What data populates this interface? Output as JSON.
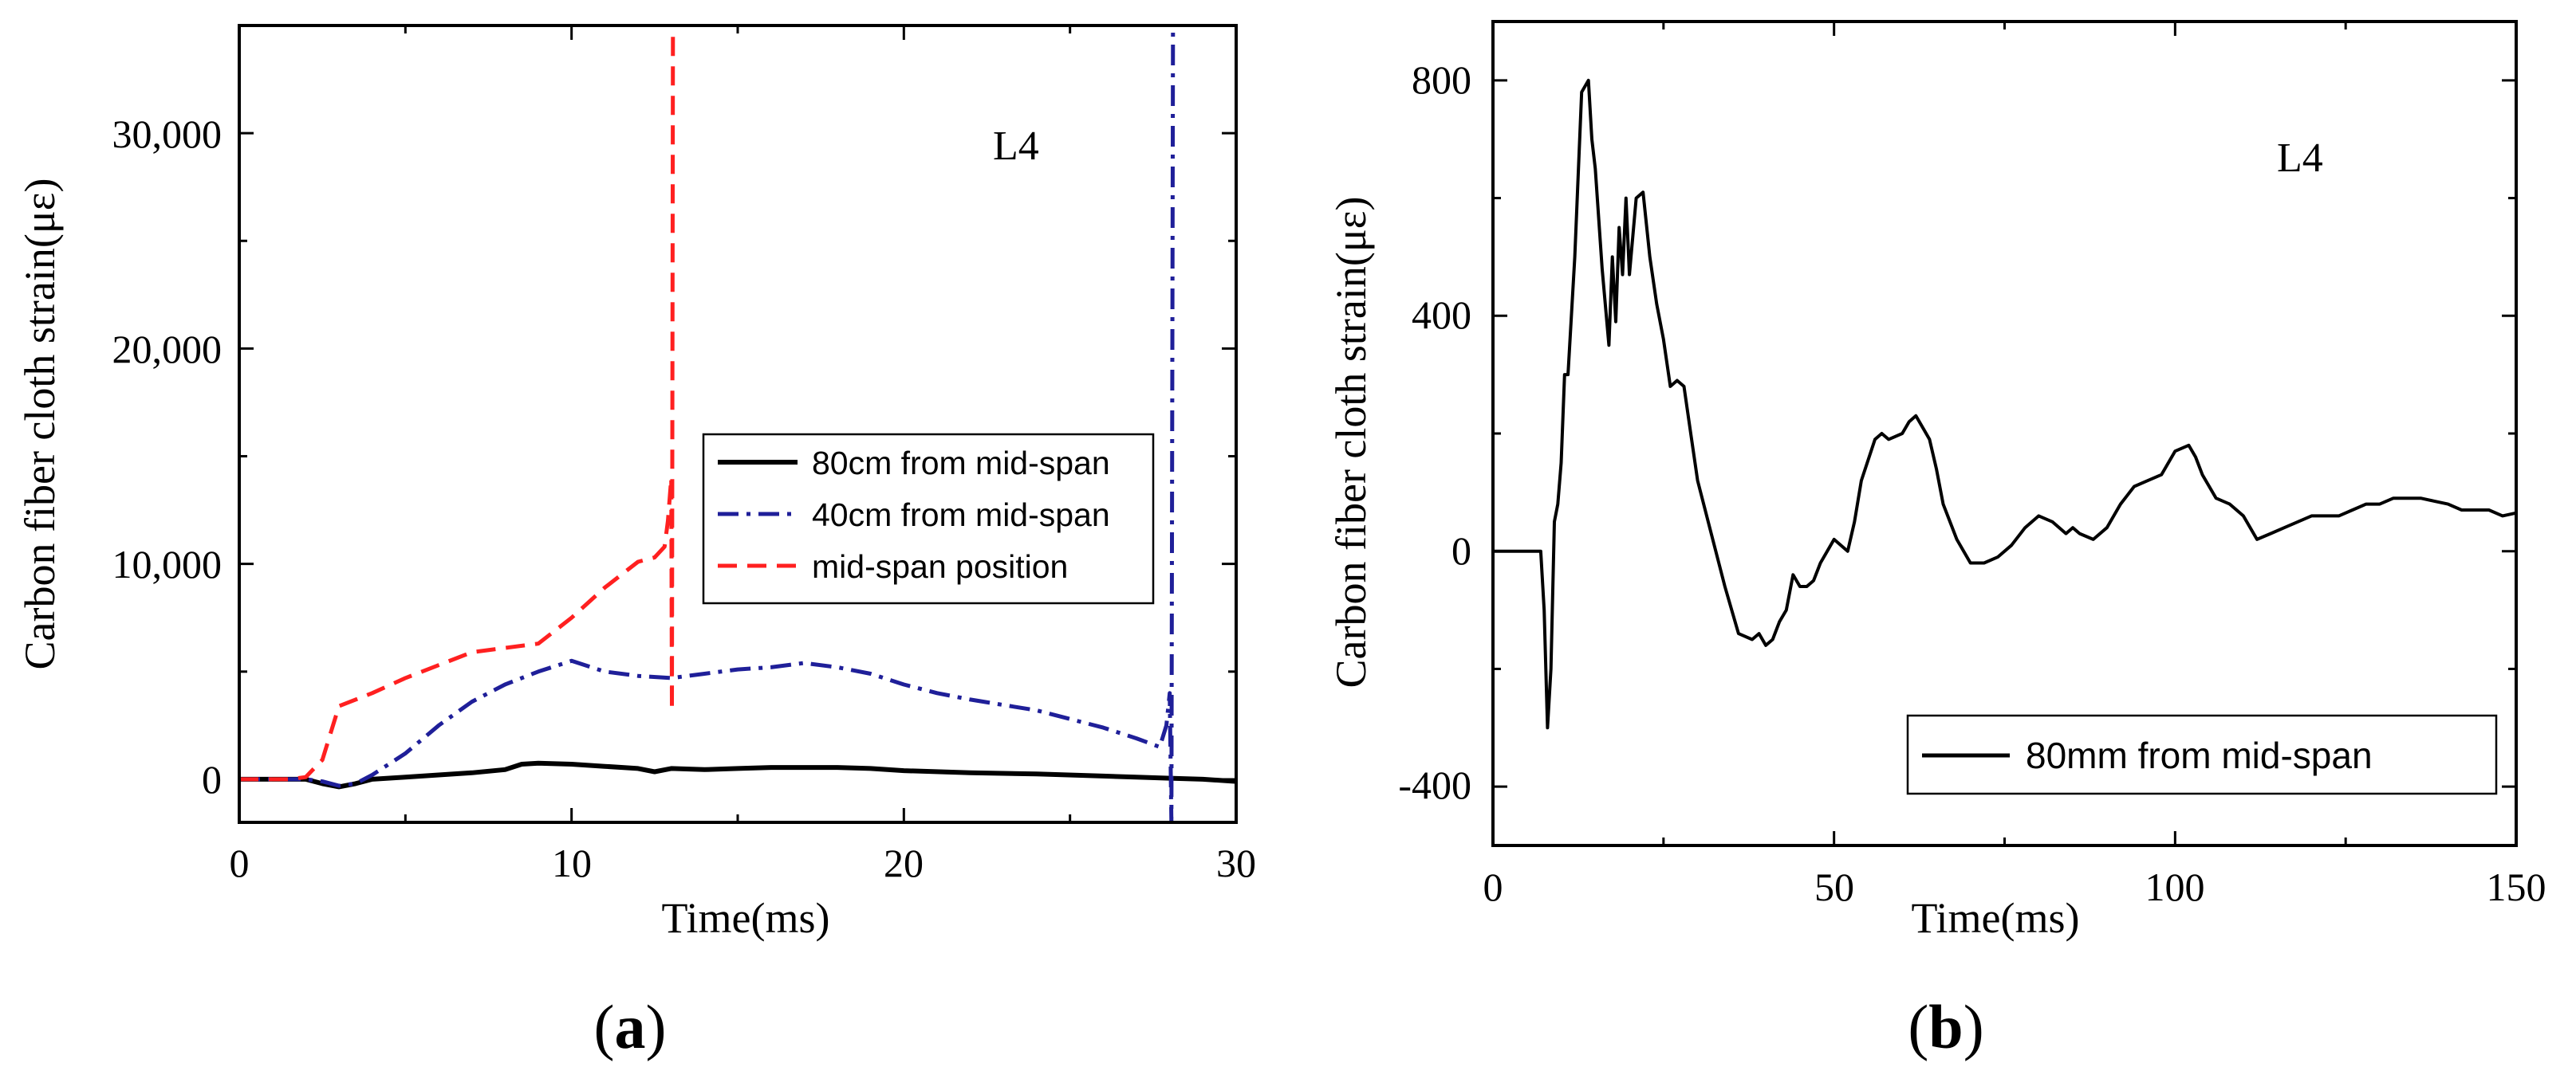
{
  "chart_data": [
    {
      "type": "line",
      "panel_label": "(a)",
      "panel_letter": "a",
      "annotation": "L4",
      "xlabel": "Time(ms)",
      "ylabel": "Carbon fiber cloth strain(με)",
      "xlim": [
        0,
        30
      ],
      "ylim": [
        -2000,
        35000
      ],
      "xticks": [
        0,
        10,
        20,
        30
      ],
      "xtick_labels": [
        "0",
        "10",
        "20",
        "30"
      ],
      "yticks": [
        0,
        10000,
        20000,
        30000
      ],
      "ytick_labels": [
        "0",
        "10,000",
        "20,000",
        "30,000"
      ],
      "legend_position": "center-right",
      "series": [
        {
          "name": "80cm from mid-span",
          "color": "#000000",
          "style": "solid",
          "x": [
            0,
            2,
            2.5,
            3,
            3.5,
            4,
            5,
            6,
            7,
            8,
            8.5,
            9,
            10,
            11,
            12,
            12.5,
            13,
            14,
            15,
            16,
            17,
            18,
            19,
            20,
            22,
            24,
            26,
            27,
            28,
            29,
            30
          ],
          "y": [
            0,
            0,
            -200,
            -350,
            -200,
            0,
            100,
            200,
            300,
            450,
            700,
            750,
            700,
            600,
            500,
            350,
            500,
            450,
            500,
            550,
            550,
            550,
            500,
            400,
            300,
            250,
            150,
            100,
            50,
            0,
            -100
          ]
        },
        {
          "name": "40cm from mid-span",
          "color": "#1f1f99",
          "style": "dashdot",
          "x": [
            0,
            2,
            2.5,
            3,
            3.5,
            4,
            5,
            6,
            7,
            8,
            9,
            10,
            11,
            12,
            13,
            14,
            15,
            16,
            17,
            18,
            19,
            20,
            21,
            22,
            24,
            26,
            27,
            27.7,
            27.9,
            28,
            28.05,
            28.1
          ],
          "y": [
            0,
            0,
            -100,
            -300,
            -200,
            200,
            1200,
            2500,
            3600,
            4400,
            5000,
            5500,
            5000,
            4800,
            4700,
            4900,
            5100,
            5200,
            5400,
            5200,
            4900,
            4400,
            4000,
            3700,
            3200,
            2400,
            1900,
            1500,
            2500,
            4000,
            -2000,
            35000
          ]
        },
        {
          "name": "mid-span position",
          "color": "#ff2020",
          "style": "dashed",
          "x": [
            0,
            1.5,
            2,
            2.5,
            3,
            4,
            5,
            6,
            7,
            8,
            9,
            10,
            11,
            12,
            12.5,
            12.8,
            12.9,
            13,
            13.02,
            13.05
          ],
          "y": [
            0,
            0,
            100,
            900,
            3400,
            4000,
            4700,
            5300,
            5900,
            6100,
            6300,
            7500,
            8900,
            10100,
            10300,
            10800,
            12000,
            14000,
            3200,
            35000
          ]
        }
      ]
    },
    {
      "type": "line",
      "panel_label": "(b)",
      "panel_letter": "b",
      "annotation": "L4",
      "xlabel": "Time(ms)",
      "ylabel": "Carbon fiber cloth strain(με)",
      "xlim": [
        0,
        150
      ],
      "ylim": [
        -500,
        900
      ],
      "xticks": [
        0,
        50,
        100,
        150
      ],
      "xtick_labels": [
        "0",
        "50",
        "100",
        "150"
      ],
      "yticks": [
        -400,
        0,
        400,
        800
      ],
      "ytick_labels": [
        "-400",
        "0",
        "400",
        "800"
      ],
      "legend_position": "bottom-right",
      "series": [
        {
          "name": "80mm from mid-span",
          "color": "#000000",
          "style": "solid",
          "x": [
            0,
            7,
            7.5,
            8,
            8.5,
            9,
            9.5,
            10,
            10.5,
            11,
            12,
            13,
            14,
            14.5,
            15,
            16,
            17,
            17.5,
            18,
            18.5,
            19,
            19.5,
            20,
            21,
            22,
            23,
            24,
            25,
            26,
            27,
            28,
            29,
            30,
            32,
            34,
            36,
            38,
            39,
            40,
            41,
            42,
            43,
            44,
            45,
            46,
            47,
            48,
            50,
            52,
            53,
            54,
            56,
            57,
            58,
            60,
            61,
            62,
            63,
            64,
            65,
            66,
            68,
            70,
            71,
            72,
            74,
            76,
            78,
            80,
            82,
            84,
            85,
            86,
            88,
            90,
            92,
            94,
            96,
            98,
            100,
            102,
            103,
            104,
            106,
            108,
            110,
            112,
            114,
            116,
            118,
            120,
            122,
            124,
            126,
            128,
            130,
            132,
            134,
            136,
            138,
            140,
            142,
            144,
            146,
            148,
            150
          ],
          "y": [
            0,
            0,
            -100,
            -300,
            -200,
            50,
            80,
            150,
            300,
            300,
            500,
            780,
            800,
            700,
            650,
            480,
            350,
            500,
            390,
            550,
            470,
            600,
            470,
            600,
            610,
            500,
            420,
            360,
            280,
            290,
            280,
            200,
            120,
            30,
            -60,
            -140,
            -150,
            -140,
            -160,
            -150,
            -120,
            -100,
            -40,
            -60,
            -60,
            -50,
            -20,
            20,
            0,
            50,
            120,
            190,
            200,
            190,
            200,
            220,
            230,
            210,
            190,
            140,
            80,
            20,
            -20,
            -20,
            -20,
            -10,
            10,
            40,
            60,
            50,
            30,
            40,
            30,
            20,
            40,
            80,
            110,
            120,
            130,
            170,
            180,
            160,
            130,
            90,
            80,
            60,
            20,
            30,
            40,
            50,
            60,
            60,
            60,
            70,
            80,
            80,
            90,
            90,
            90,
            85,
            80,
            70,
            70,
            70,
            60,
            65
          ]
        }
      ]
    }
  ]
}
